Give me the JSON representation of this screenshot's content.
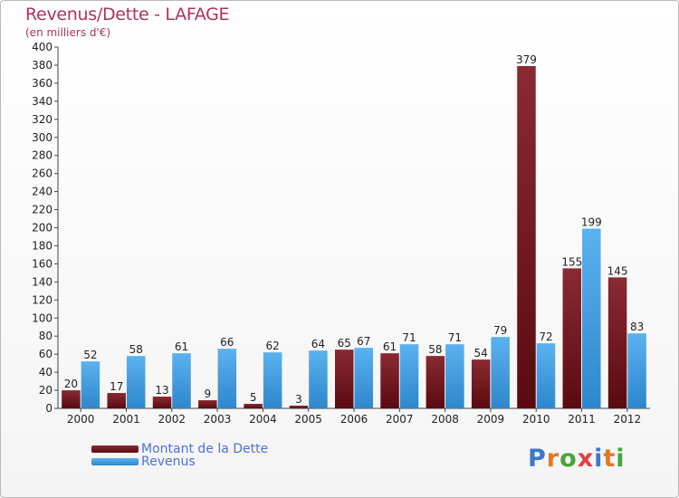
{
  "chart_data": {
    "type": "bar",
    "title": "Revenus/Dette - LAFAGE",
    "subtitle": "(en milliers d'€)",
    "categories": [
      "2000",
      "2001",
      "2002",
      "2003",
      "2004",
      "2005",
      "2006",
      "2007",
      "2008",
      "2009",
      "2010",
      "2011",
      "2012"
    ],
    "series": [
      {
        "name": "Montant de la Dette",
        "color": "#7a1a22",
        "values": [
          20,
          17,
          13,
          9,
          5,
          3,
          65,
          61,
          58,
          54,
          379,
          155,
          145
        ]
      },
      {
        "name": "Revenus",
        "color": "#4da3e6",
        "values": [
          52,
          58,
          61,
          66,
          62,
          64,
          67,
          71,
          71,
          79,
          72,
          199,
          83
        ]
      }
    ],
    "ylim": [
      0,
      400
    ],
    "ytick_step": 20,
    "grid": false,
    "legend_position": "bottom-left"
  },
  "logo": {
    "text": "Proxiti",
    "colors": [
      "#3c78c8",
      "#e07820",
      "#46a53c",
      "#e04040",
      "#3c78c8",
      "#e07820",
      "#46a53c"
    ]
  }
}
